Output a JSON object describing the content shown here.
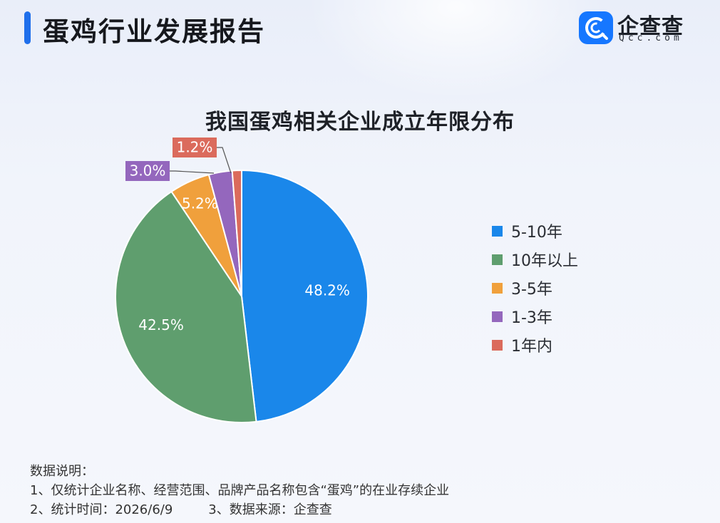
{
  "header": {
    "title": "蛋鸡行业发展报告",
    "accent_color": "#1f6feb"
  },
  "logo": {
    "name": "企查查",
    "domain": "Qcc.com",
    "icon": "qcc-logo-icon",
    "color": "#1677ff"
  },
  "chart_data": {
    "type": "pie",
    "title": "我国蛋鸡相关企业成立年限分布",
    "slices": [
      {
        "label": "5-10年",
        "value": 48.2,
        "display": "48.2%",
        "color": "#1a87ea"
      },
      {
        "label": "10年以上",
        "value": 42.5,
        "display": "42.5%",
        "color": "#5f9e6e"
      },
      {
        "label": "3-5年",
        "value": 5.2,
        "display": "5.2%",
        "color": "#f0a03c"
      },
      {
        "label": "1-3年",
        "value": 3.0,
        "display": "3.0%",
        "color": "#9467bd"
      },
      {
        "label": "1年内",
        "value": 1.2,
        "display": "1.2%",
        "color": "#db6b5c"
      }
    ],
    "start": "12 o'clock",
    "direction": "clockwise",
    "legend_position": "right"
  },
  "notes": {
    "heading": "数据说明：",
    "line1": "1、仅统计企业名称、经营范围、品牌产品名称包含“蛋鸡”的在业存续企业",
    "line2_time": "2、统计时间：2026/6/9",
    "line2_source": "3、数据来源：企查查"
  }
}
